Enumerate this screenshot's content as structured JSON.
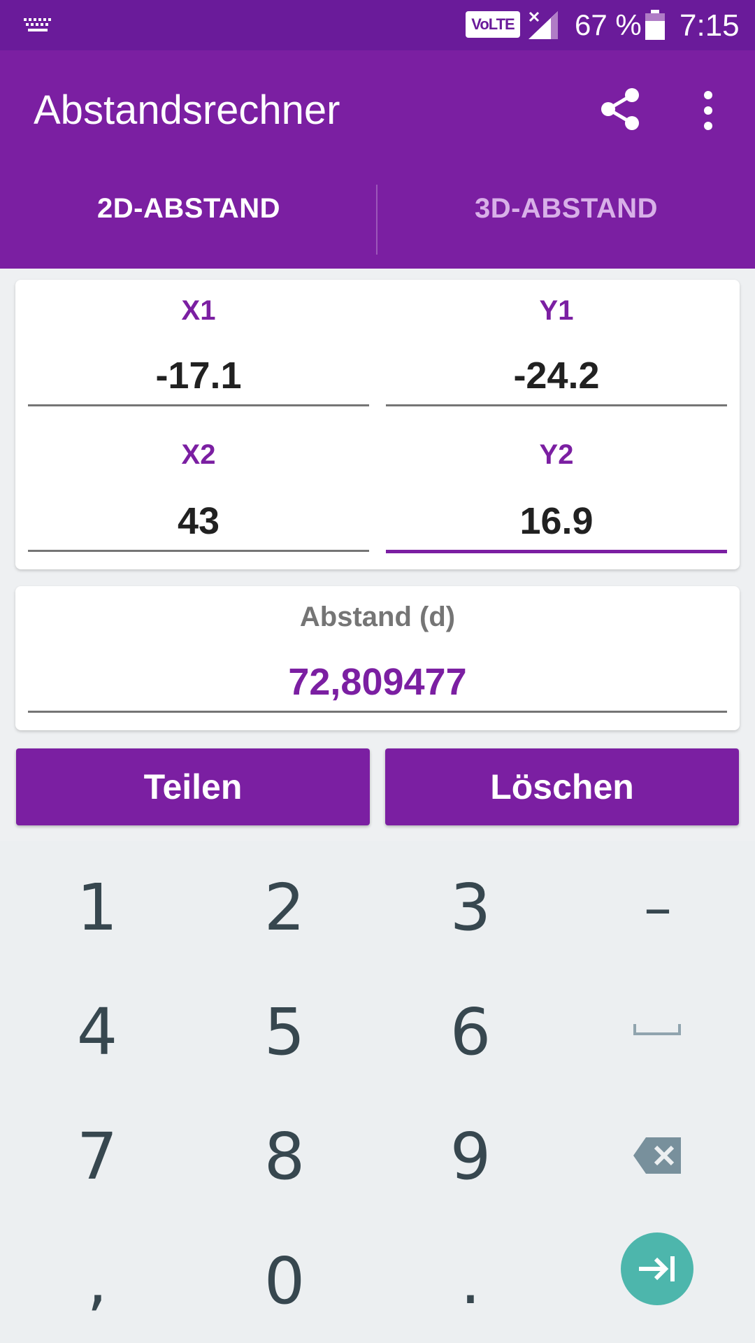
{
  "status_bar": {
    "network_badge": "VoLTE",
    "battery": "67 %",
    "time": "7:15"
  },
  "app_bar": {
    "title": "Abstandsrechner",
    "icons": [
      "share-icon",
      "more-vert-icon"
    ]
  },
  "tabs": [
    {
      "label": "2D-ABSTAND",
      "selected": true
    },
    {
      "label": "3D-ABSTAND",
      "selected": false
    }
  ],
  "inputs": {
    "x1": {
      "label": "X1",
      "value": "-17.1"
    },
    "y1": {
      "label": "Y1",
      "value": "-24.2"
    },
    "x2": {
      "label": "X2",
      "value": "43"
    },
    "y2": {
      "label": "Y2",
      "value": "16.9",
      "focused": true
    }
  },
  "result": {
    "label": "Abstand (d)",
    "value": "72,809477"
  },
  "buttons": {
    "share": "Teilen",
    "clear": "Löschen"
  },
  "keypad": {
    "keys": [
      "1",
      "2",
      "3",
      "–",
      "4",
      "5",
      "6",
      "7",
      "8",
      "9",
      ",",
      "0",
      "."
    ],
    "special": [
      "space-icon",
      "backspace-icon",
      "next-field-icon"
    ]
  },
  "colors": {
    "primary": "#7b1fa2",
    "status_bar": "#6a1b9a",
    "accent_teal": "#4db6ac"
  }
}
